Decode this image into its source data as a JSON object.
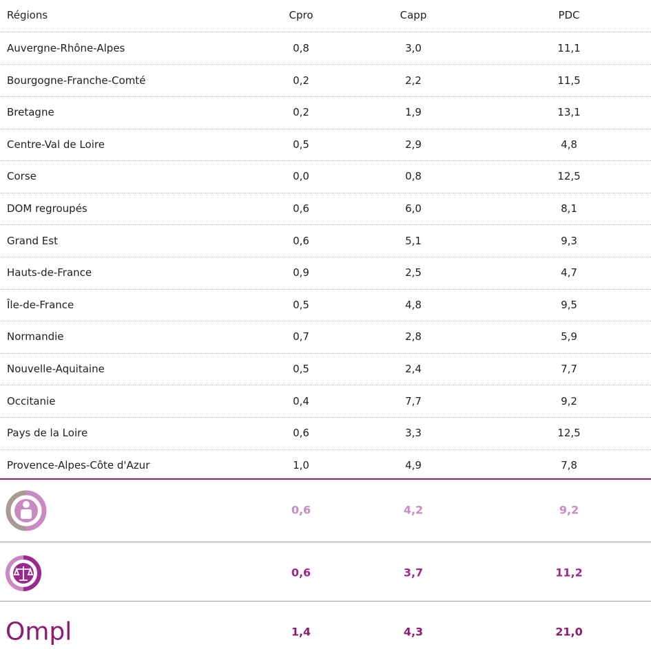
{
  "table": {
    "header": [
      "Régions",
      "Cpro",
      "Capp",
      "PDC"
    ],
    "rows": [
      [
        "Auvergne-Rhône-Alpes",
        "0,8",
        "3,0",
        "11,1"
      ],
      [
        "Bourgogne-Franche-Comté",
        "0,2",
        "2,2",
        "11,5"
      ],
      [
        "Bretagne",
        "0,2",
        "1,9",
        "13,1"
      ],
      [
        "Centre-Val de Loire",
        "0,5",
        "2,9",
        "4,8"
      ],
      [
        "Corse",
        "0,0",
        "0,8",
        "12,5"
      ],
      [
        "DOM regroupés",
        "0,6",
        "6,0",
        "8,1"
      ],
      [
        "Grand Est",
        "0,6",
        "5,1",
        "9,3"
      ],
      [
        "Hauts-de-France",
        "0,9",
        "2,5",
        "4,7"
      ],
      [
        "Île-de-France",
        "0,5",
        "4,8",
        "9,5"
      ],
      [
        "Normandie",
        "0,7",
        "2,8",
        "5,9"
      ],
      [
        "Nouvelle-Aquitaine",
        "0,5",
        "2,4",
        "7,7"
      ],
      [
        "Occitanie",
        "0,4",
        "7,7",
        "9,2"
      ],
      [
        "Pays de la Loire",
        "0,6",
        "3,3",
        "12,5"
      ],
      [
        "Provence-Alpes-Côte d'Azur",
        "1,0",
        "4,9",
        "7,8"
      ]
    ],
    "summary": [
      {
        "values": [
          "0,6",
          "4,2",
          "9,2"
        ]
      },
      {
        "values": [
          "0,6",
          "3,7",
          "11,2"
        ]
      },
      {
        "logo": "Ompl",
        "values": [
          "1,4",
          "4,3",
          "21,0"
        ]
      }
    ]
  }
}
